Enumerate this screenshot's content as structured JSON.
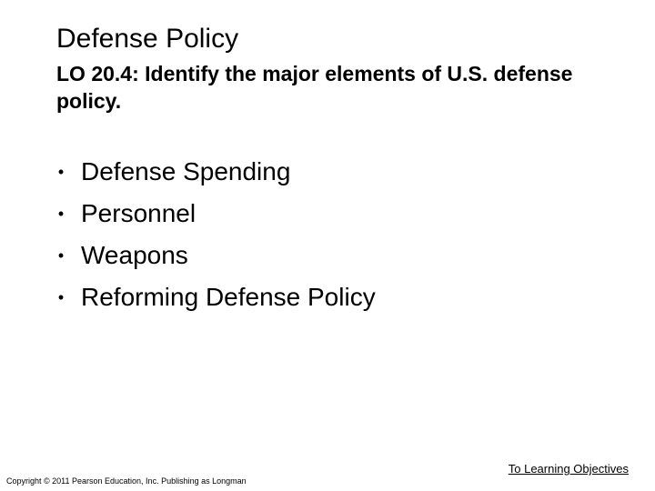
{
  "slide": {
    "title": "Defense Policy",
    "subtitle": "LO 20.4: Identify the major elements of U.S. defense policy.",
    "bullet_glyph": "•",
    "bullets": [
      "Defense Spending",
      "Personnel",
      "Weapons",
      "Reforming Defense Policy"
    ],
    "objectives_link": "To Learning Objectives",
    "copyright": "Copyright © 2011 Pearson Education, Inc. Publishing as Longman"
  }
}
